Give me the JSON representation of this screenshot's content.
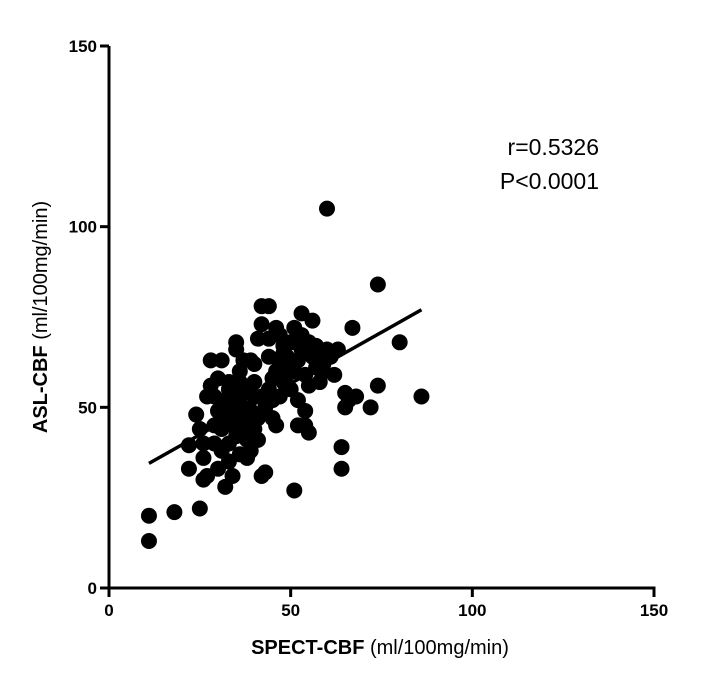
{
  "chart_data": {
    "type": "scatter",
    "title": "",
    "xlabel": {
      "main": "SPECT-CBF",
      "unit": " (ml/100mg/min)"
    },
    "ylabel": {
      "main": "ASL-CBF",
      "unit": " (ml/100mg/min)"
    },
    "xlim": [
      0,
      150
    ],
    "ylim": [
      0,
      150
    ],
    "xticks": [
      0,
      50,
      100,
      150
    ],
    "yticks": [
      0,
      50,
      100,
      150
    ],
    "annotations": [
      "r=0.5326",
      "P<0.0001"
    ],
    "regression": {
      "x": [
        11,
        86
      ],
      "y": [
        34.5,
        77
      ]
    },
    "points": [
      [
        11,
        13
      ],
      [
        11,
        20
      ],
      [
        18,
        21
      ],
      [
        25,
        22
      ],
      [
        22,
        33
      ],
      [
        22,
        39.5
      ],
      [
        24,
        48
      ],
      [
        25,
        44
      ],
      [
        26,
        40
      ],
      [
        26,
        36
      ],
      [
        26,
        30
      ],
      [
        27,
        31
      ],
      [
        27,
        53
      ],
      [
        28,
        56
      ],
      [
        28,
        63
      ],
      [
        29,
        45
      ],
      [
        29,
        40
      ],
      [
        30,
        33
      ],
      [
        30,
        49
      ],
      [
        30,
        58
      ],
      [
        31,
        63
      ],
      [
        31,
        38
      ],
      [
        31,
        44
      ],
      [
        32,
        28
      ],
      [
        32,
        52
      ],
      [
        32,
        47
      ],
      [
        33,
        35
      ],
      [
        33,
        40
      ],
      [
        33,
        55
      ],
      [
        34,
        31
      ],
      [
        34,
        45
      ],
      [
        34,
        50
      ],
      [
        35,
        66
      ],
      [
        35,
        68
      ],
      [
        35,
        48
      ],
      [
        35,
        42
      ],
      [
        36,
        37
      ],
      [
        36,
        53
      ],
      [
        36,
        57
      ],
      [
        37,
        45
      ],
      [
        37,
        50
      ],
      [
        38,
        36
      ],
      [
        38,
        41
      ],
      [
        38,
        55
      ],
      [
        38,
        47
      ],
      [
        39,
        49
      ],
      [
        39,
        38
      ],
      [
        40,
        53
      ],
      [
        40,
        57
      ],
      [
        40,
        44
      ],
      [
        40,
        62
      ],
      [
        41,
        47
      ],
      [
        41,
        69
      ],
      [
        41,
        41
      ],
      [
        42,
        73
      ],
      [
        42,
        78
      ],
      [
        42,
        53
      ],
      [
        42,
        31
      ],
      [
        43,
        32
      ],
      [
        43,
        50
      ],
      [
        44,
        55
      ],
      [
        44,
        78
      ],
      [
        44,
        64
      ],
      [
        45,
        47
      ],
      [
        45,
        58
      ],
      [
        45,
        52
      ],
      [
        46,
        45
      ],
      [
        46,
        60
      ],
      [
        46,
        72
      ],
      [
        47,
        70
      ],
      [
        47,
        53
      ],
      [
        48,
        65
      ],
      [
        48,
        57
      ],
      [
        48,
        67
      ],
      [
        49,
        64
      ],
      [
        49,
        59
      ],
      [
        50,
        68
      ],
      [
        50,
        62
      ],
      [
        50,
        55
      ],
      [
        51,
        27
      ],
      [
        51,
        72
      ],
      [
        51,
        60
      ],
      [
        52,
        45
      ],
      [
        52,
        52
      ],
      [
        52,
        63
      ],
      [
        53,
        76
      ],
      [
        53,
        70
      ],
      [
        53,
        66
      ],
      [
        54,
        49
      ],
      [
        54,
        59
      ],
      [
        54,
        45
      ],
      [
        55,
        43
      ],
      [
        55,
        68
      ],
      [
        56,
        74
      ],
      [
        56,
        64
      ],
      [
        57,
        61
      ],
      [
        57,
        67
      ],
      [
        58,
        57
      ],
      [
        58,
        65
      ],
      [
        59,
        62
      ],
      [
        59,
        60
      ],
      [
        60,
        105
      ],
      [
        60,
        66
      ],
      [
        61,
        64
      ],
      [
        62,
        59
      ],
      [
        63,
        66
      ],
      [
        64,
        39
      ],
      [
        64,
        33
      ],
      [
        65,
        54
      ],
      [
        65,
        50
      ],
      [
        66,
        52
      ],
      [
        67,
        72
      ],
      [
        68,
        53
      ],
      [
        72,
        50
      ],
      [
        74,
        84
      ],
      [
        74,
        56
      ],
      [
        80,
        68
      ],
      [
        86,
        53
      ],
      [
        39,
        63
      ],
      [
        44,
        69
      ],
      [
        47,
        62
      ],
      [
        36,
        60
      ],
      [
        33,
        57
      ],
      [
        29,
        53
      ],
      [
        37,
        63
      ],
      [
        55,
        56
      ]
    ]
  }
}
